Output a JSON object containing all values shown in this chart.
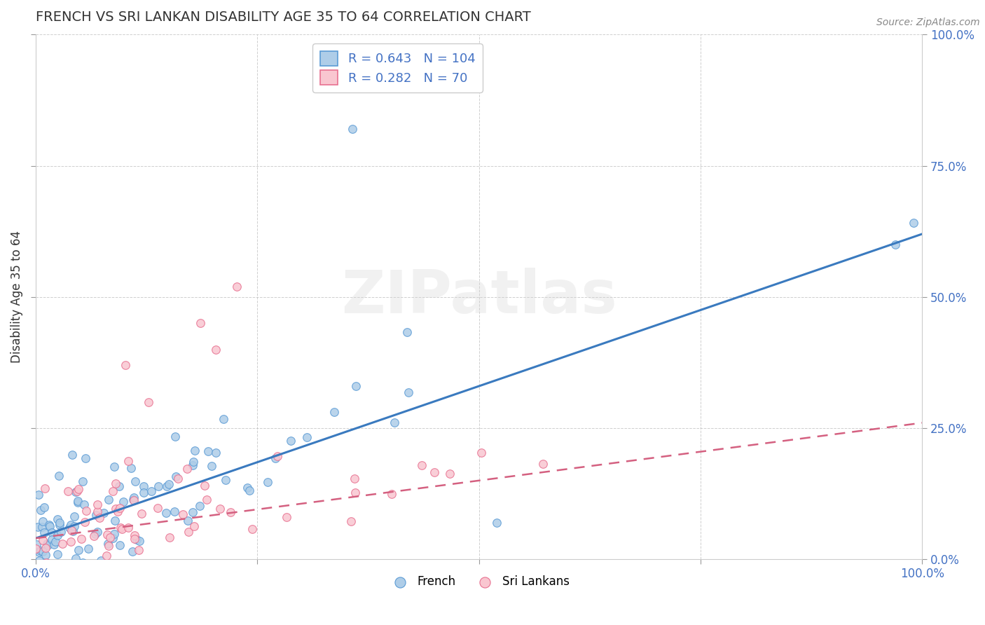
{
  "title": "FRENCH VS SRI LANKAN DISABILITY AGE 35 TO 64 CORRELATION CHART",
  "source": "Source: ZipAtlas.com",
  "ylabel": "Disability Age 35 to 64",
  "french_R": 0.643,
  "french_N": 104,
  "sri_lankan_R": 0.282,
  "sri_lankan_N": 70,
  "french_face_color": "#aecde8",
  "french_edge_color": "#5b9bd5",
  "sri_lankan_face_color": "#f9c6d0",
  "sri_lankan_edge_color": "#e87090",
  "french_line_color": "#3a7abf",
  "sri_lankan_line_color": "#d46080",
  "watermark": "ZIPatlas",
  "xlim": [
    0,
    1
  ],
  "ylim": [
    0,
    1
  ],
  "background_color": "#ffffff",
  "grid_color": "#bbbbbb",
  "title_color": "#333333",
  "legend_text_color": "#4472c4",
  "axis_label_color": "#4472c4",
  "french_slope": 0.58,
  "french_intercept": 0.04,
  "sri_lankan_slope": 0.22,
  "sri_lankan_intercept": 0.04
}
